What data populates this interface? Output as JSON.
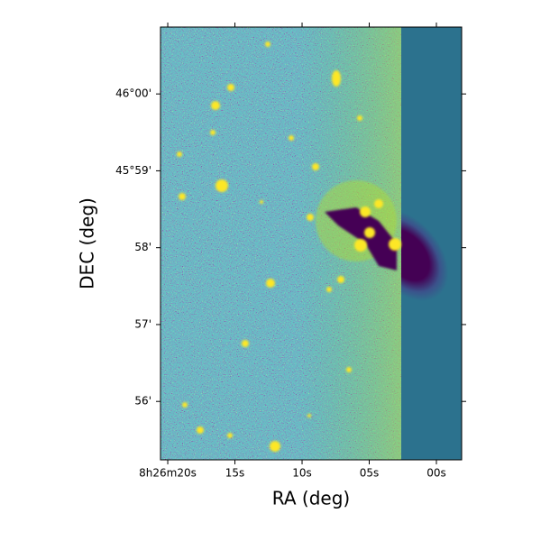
{
  "chart_data": {
    "type": "image",
    "xlabel": "RA (deg)",
    "ylabel": "DEC (deg)",
    "xlim": [
      20.54,
      -1.88
    ],
    "xticks": [
      {
        "value": 20,
        "label": "8h26m20s"
      },
      {
        "value": 15,
        "label": "15s"
      },
      {
        "value": 10,
        "label": "10s"
      },
      {
        "value": 5,
        "label": "05s"
      },
      {
        "value": 0,
        "label": "00s"
      }
    ],
    "ylim": [
      55.24,
      60.87
    ],
    "yticks": [
      {
        "value": 56,
        "label": "56'"
      },
      {
        "value": 57,
        "label": "57'"
      },
      {
        "value": 58,
        "label": "58'"
      },
      {
        "value": 59,
        "label": "45°59'"
      },
      {
        "value": 60,
        "label": "46°00'"
      }
    ]
  }
}
